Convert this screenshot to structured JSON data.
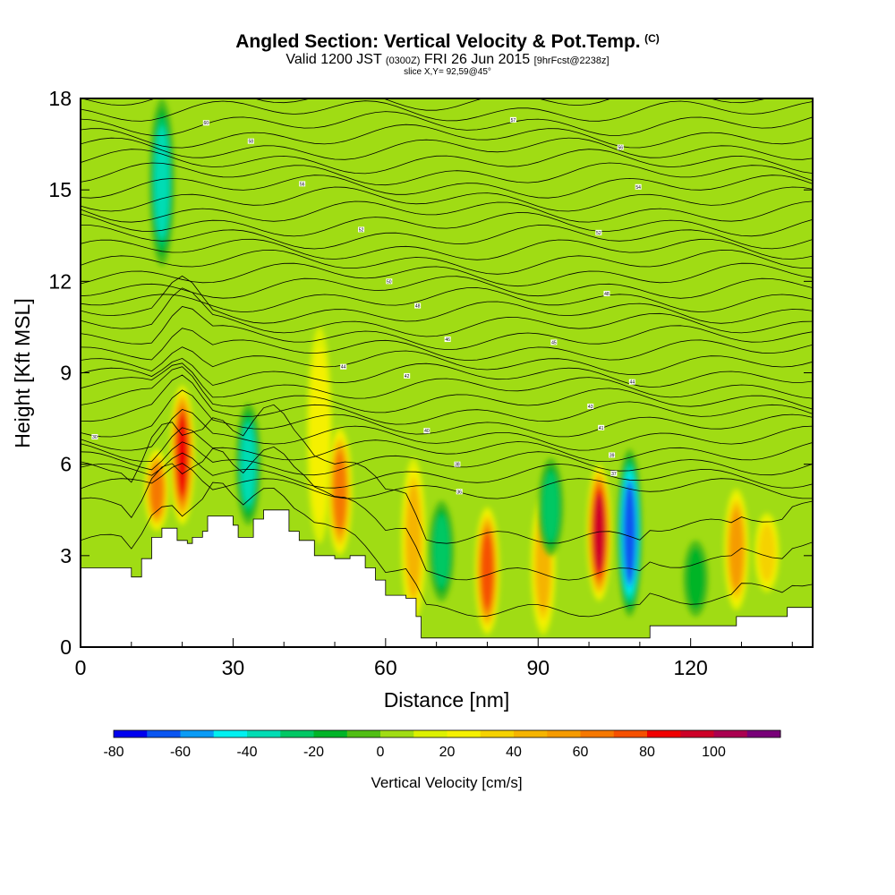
{
  "header": {
    "title": "Angled Section: Vertical Velocity & Pot.Temp.",
    "title_tag": "(C)",
    "subtitle_a": "Valid 1200 JST",
    "subtitle_b": "(0300Z)",
    "subtitle_c": "FRI 26 Jun 2015",
    "subtitle_d": "[9hrFcst@2238z]",
    "slice": "slice X,Y= 92,59@45°"
  },
  "chart_data": {
    "type": "heatmap",
    "title": "Angled Section: Vertical Velocity & Pot.Temp.",
    "xlabel": "Distance [nm]",
    "ylabel": "Height [Kft MSL]",
    "xlim": [
      0,
      144
    ],
    "ylim": [
      0,
      18
    ],
    "x_ticks": [
      0,
      30,
      60,
      90,
      120
    ],
    "x_tick_labels": [
      "0",
      "30",
      "60",
      "90",
      "120"
    ],
    "y_ticks": [
      0,
      3,
      6,
      9,
      12,
      15,
      18
    ],
    "y_tick_labels": [
      "0",
      "3",
      "6",
      "9",
      "12",
      "15",
      "18"
    ],
    "field": "Vertical Velocity",
    "colorbar": {
      "label": "Vertical Velocity [cm/s]",
      "levels": [
        -80,
        -70,
        -60,
        -50,
        -40,
        -30,
        -20,
        -10,
        0,
        10,
        20,
        30,
        40,
        50,
        60,
        70,
        80,
        90,
        100,
        110
      ],
      "tick_values": [
        -80,
        -60,
        -40,
        -20,
        0,
        20,
        40,
        60,
        80,
        100
      ],
      "tick_labels": [
        "-80",
        "-60",
        "-40",
        "-20",
        "0",
        "20",
        "40",
        "60",
        "80",
        "100"
      ],
      "colors": [
        "#0000ee",
        "#0a55f0",
        "#0a9bf5",
        "#00f0f0",
        "#00dcb4",
        "#00c864",
        "#00b428",
        "#50be14",
        "#a0dc14",
        "#dcf000",
        "#f5f000",
        "#f5d200",
        "#f5b400",
        "#f59b00",
        "#f57800",
        "#f55000",
        "#f00000",
        "#cd0028",
        "#aa0050",
        "#780078"
      ]
    },
    "background_velocity": 0,
    "updraft_columns": [
      {
        "x": 15,
        "bottom": 3.8,
        "top": 6.5,
        "value": 55
      },
      {
        "x": 20,
        "bottom": 4.0,
        "top": 8.6,
        "value": 78
      },
      {
        "x": 47,
        "bottom": 3.4,
        "top": 10.5,
        "value": 20
      },
      {
        "x": 51,
        "bottom": 3.0,
        "top": 7.2,
        "value": 62
      },
      {
        "x": 65.5,
        "bottom": 0.8,
        "top": 6.2,
        "value": 40
      },
      {
        "x": 80,
        "bottom": 0.4,
        "top": 4.6,
        "value": 70
      },
      {
        "x": 91,
        "bottom": 0.4,
        "top": 5.0,
        "value": 38
      },
      {
        "x": 102,
        "bottom": 1.5,
        "top": 6.0,
        "value": 86
      },
      {
        "x": 129,
        "bottom": 1.2,
        "top": 5.2,
        "value": 45
      },
      {
        "x": 135,
        "bottom": 1.8,
        "top": 4.4,
        "value": 32
      }
    ],
    "downdraft_columns": [
      {
        "x": 16,
        "bottom": 12.5,
        "top": 18,
        "value": -42
      },
      {
        "x": 33,
        "bottom": 4.0,
        "top": 8.0,
        "value": -35
      },
      {
        "x": 71,
        "bottom": 1.5,
        "top": 4.8,
        "value": -28
      },
      {
        "x": 92.5,
        "bottom": 3.0,
        "top": 6.2,
        "value": -30
      },
      {
        "x": 108,
        "bottom": 1.0,
        "top": 6.5,
        "value": -68
      },
      {
        "x": 121,
        "bottom": 1.0,
        "top": 3.5,
        "value": -22
      }
    ],
    "terrain_surface": [
      {
        "x": 0,
        "height": 2.6
      },
      {
        "x": 3,
        "height": 2.6
      },
      {
        "x": 9,
        "height": 2.6
      },
      {
        "x": 10,
        "height": 2.3
      },
      {
        "x": 12,
        "height": 2.9
      },
      {
        "x": 14,
        "height": 3.6
      },
      {
        "x": 16,
        "height": 3.9
      },
      {
        "x": 18,
        "height": 3.9
      },
      {
        "x": 19,
        "height": 3.5
      },
      {
        "x": 21,
        "height": 3.4
      },
      {
        "x": 22,
        "height": 3.6
      },
      {
        "x": 24,
        "height": 3.8
      },
      {
        "x": 25,
        "height": 4.3
      },
      {
        "x": 28,
        "height": 4.3
      },
      {
        "x": 30,
        "height": 4.0
      },
      {
        "x": 31,
        "height": 3.6
      },
      {
        "x": 34,
        "height": 4.2
      },
      {
        "x": 36,
        "height": 4.5
      },
      {
        "x": 39,
        "height": 4.5
      },
      {
        "x": 41,
        "height": 3.8
      },
      {
        "x": 43,
        "height": 3.5
      },
      {
        "x": 46,
        "height": 3.0
      },
      {
        "x": 50,
        "height": 2.9
      },
      {
        "x": 53,
        "height": 3.0
      },
      {
        "x": 56,
        "height": 2.6
      },
      {
        "x": 58,
        "height": 2.2
      },
      {
        "x": 60,
        "height": 1.7
      },
      {
        "x": 64,
        "height": 1.6
      },
      {
        "x": 66,
        "height": 1.0
      },
      {
        "x": 67,
        "height": 0.3
      },
      {
        "x": 70,
        "height": 0.3
      },
      {
        "x": 90,
        "height": 0.3
      },
      {
        "x": 111,
        "height": 0.3
      },
      {
        "x": 112,
        "height": 0.7
      },
      {
        "x": 128,
        "height": 0.7
      },
      {
        "x": 129,
        "height": 1.0
      },
      {
        "x": 138,
        "height": 1.0
      },
      {
        "x": 139,
        "height": 1.3
      },
      {
        "x": 144,
        "height": 1.3
      }
    ],
    "contour_line_count": 32,
    "contour_labels": [
      {
        "x": 2.8,
        "y": 6.9,
        "text": "30"
      },
      {
        "x": 24.7,
        "y": 17.2,
        "text": "60"
      },
      {
        "x": 33.5,
        "y": 16.6,
        "text": "58"
      },
      {
        "x": 43.6,
        "y": 15.2,
        "text": "56"
      },
      {
        "x": 55.2,
        "y": 13.7,
        "text": "52"
      },
      {
        "x": 60.7,
        "y": 12.0,
        "text": "50"
      },
      {
        "x": 66.3,
        "y": 11.2,
        "text": "48"
      },
      {
        "x": 72.2,
        "y": 10.1,
        "text": "46"
      },
      {
        "x": 51.7,
        "y": 9.2,
        "text": "44"
      },
      {
        "x": 64.2,
        "y": 8.9,
        "text": "42"
      },
      {
        "x": 68.1,
        "y": 7.1,
        "text": "40"
      },
      {
        "x": 74.1,
        "y": 6.0,
        "text": "38"
      },
      {
        "x": 74.5,
        "y": 5.1,
        "text": "36"
      },
      {
        "x": 85.1,
        "y": 17.3,
        "text": "57"
      },
      {
        "x": 93.1,
        "y": 10.0,
        "text": "45"
      },
      {
        "x": 100.3,
        "y": 7.9,
        "text": "43"
      },
      {
        "x": 102.4,
        "y": 7.2,
        "text": "41"
      },
      {
        "x": 104.5,
        "y": 6.3,
        "text": "39"
      },
      {
        "x": 104.9,
        "y": 5.7,
        "text": "37"
      },
      {
        "x": 106.2,
        "y": 16.4,
        "text": "56"
      },
      {
        "x": 101.9,
        "y": 13.6,
        "text": "52"
      },
      {
        "x": 103.5,
        "y": 11.6,
        "text": "48"
      },
      {
        "x": 108.5,
        "y": 8.7,
        "text": "44"
      },
      {
        "x": 109.7,
        "y": 15.1,
        "text": "54"
      }
    ]
  }
}
